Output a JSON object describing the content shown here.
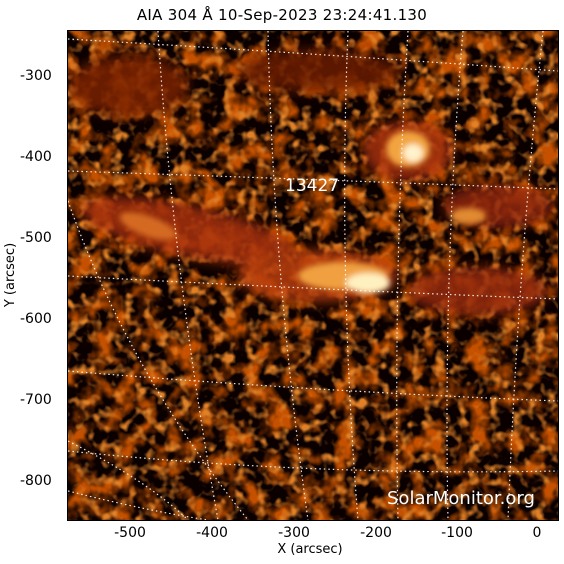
{
  "title": "AIA 304 Å 10-Sep-2023 23:24:41.130",
  "active_region": "13427",
  "credit": "SolarMonitor.org",
  "xlabel": "X (arcsec)",
  "ylabel": "Y (arcsec)",
  "x_ticks": [
    "-500",
    "-400",
    "-300",
    "-200",
    "-100",
    "0"
  ],
  "y_ticks": [
    "-300",
    "-400",
    "-500",
    "-600",
    "-700",
    "-800"
  ],
  "colors": {
    "background": "#000000",
    "palette": "AIA 304 red-orange"
  }
}
